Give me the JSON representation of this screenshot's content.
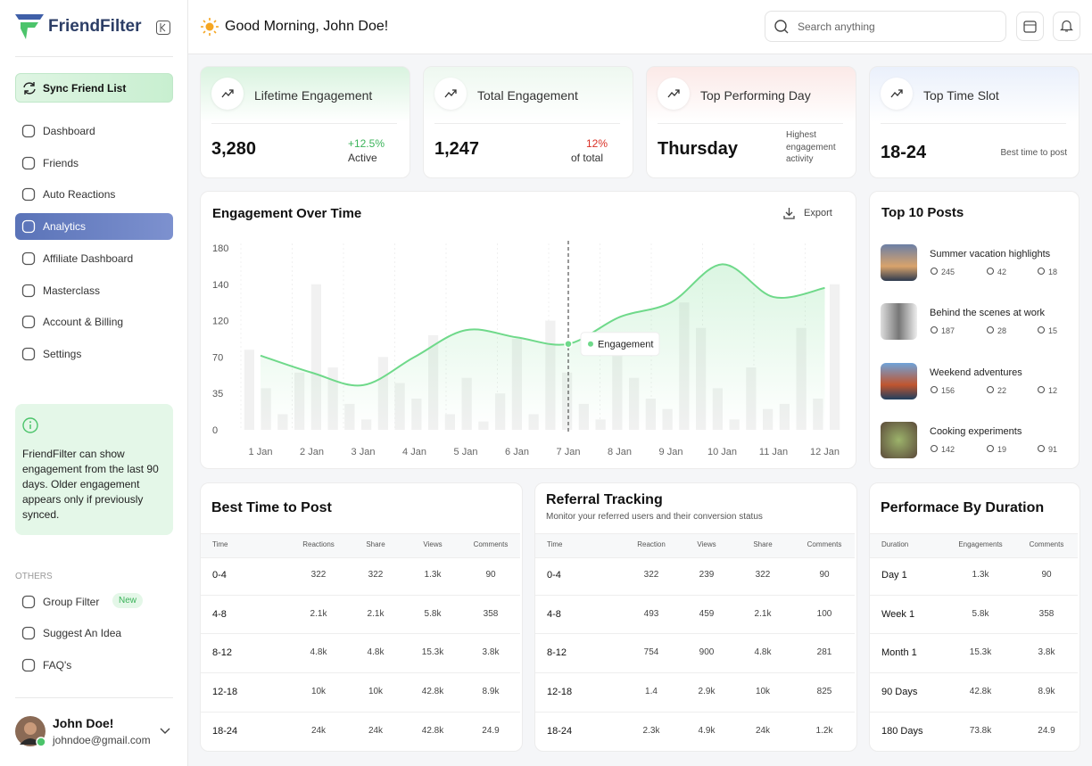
{
  "brand": "FriendFilter",
  "sidebar": {
    "sync": "Sync Friend List",
    "nav": [
      "Dashboard",
      "Friends",
      "Auto Reactions",
      "Analytics",
      "Affiliate Dashboard",
      "Masterclass",
      "Account & Billing",
      "Settings"
    ],
    "info": "FriendFilter can show engagement from the last 90 days. Older engagement appears only if previously synced.",
    "others_heading": "OTHERS",
    "others": [
      "Group Filter",
      "Suggest An Idea",
      "FAQ's"
    ],
    "new_badge": "New",
    "user": {
      "name": "John Doe!",
      "email": "johndoe@gmail.com"
    }
  },
  "header": {
    "greeting": "Good Morning, John Doe!",
    "search_placeholder": "Search anything"
  },
  "stats": [
    {
      "title": "Lifetime Engagement",
      "value": "3,280",
      "change": "+12.5%",
      "note": "Active"
    },
    {
      "title": "Total Engagement",
      "value": "1,247",
      "change": "12%",
      "note": "of total"
    },
    {
      "title": "Top Performing Day",
      "value": "Thursday",
      "note": "Highest engagement activity"
    },
    {
      "title": "Top Time Slot",
      "value": "18-24",
      "note": "Best time to post"
    }
  ],
  "chart_data": {
    "type": "line",
    "title": "Engagement Over Time",
    "export": "Export",
    "categories": [
      "1 Jan",
      "2 Jan",
      "3 Jan",
      "4 Jan",
      "5 Jan",
      "6 Jan",
      "7 Jan",
      "8 Jan",
      "9 Jan",
      "10 Jan",
      "11 Jan",
      "12 Jan"
    ],
    "series": [
      {
        "name": "Engagement",
        "color": "#6fd98a",
        "values": [
          72,
          55,
          43,
          70,
          107,
          97,
          88,
          122,
          130,
          162,
          133,
          138
        ]
      }
    ],
    "bars": [
      80,
      40,
      15,
      55,
      140,
      60,
      25,
      10,
      70,
      45,
      30,
      100,
      15,
      50,
      8,
      35,
      95,
      15,
      120,
      55,
      25,
      10,
      85,
      50,
      30,
      20,
      130,
      110,
      40,
      10,
      60,
      20,
      25,
      110,
      30,
      140
    ],
    "ylim": [
      0,
      180
    ],
    "yticks": [
      0,
      35,
      70,
      120,
      140,
      180
    ]
  },
  "top_posts": {
    "title": "Top 10 Posts",
    "posts": [
      {
        "title": "Summer vacation highlights",
        "likes": "245",
        "comments": "42",
        "shares": "18"
      },
      {
        "title": "Behind the scenes at work",
        "likes": "187",
        "comments": "28",
        "shares": "15"
      },
      {
        "title": "Weekend adventures",
        "likes": "156",
        "comments": "22",
        "shares": "12"
      },
      {
        "title": "Cooking experiments",
        "likes": "142",
        "comments": "19",
        "shares": "91"
      }
    ]
  },
  "best_time": {
    "title": "Best Time to Post",
    "columns": [
      "Time",
      "Reactions",
      "Share",
      "Views",
      "Comments"
    ],
    "rows": [
      [
        "0-4",
        "322",
        "322",
        "1.3k",
        "90"
      ],
      [
        "4-8",
        "2.1k",
        "2.1k",
        "5.8k",
        "358"
      ],
      [
        "8-12",
        "4.8k",
        "4.8k",
        "15.3k",
        "3.8k"
      ],
      [
        "12-18",
        "10k",
        "10k",
        "42.8k",
        "8.9k"
      ],
      [
        "18-24",
        "24k",
        "24k",
        "42.8k",
        "24.9"
      ]
    ]
  },
  "referral": {
    "title": "Referral Tracking",
    "subtitle": "Monitor your referred users and their conversion status",
    "columns": [
      "Time",
      "Reaction",
      "Views",
      "Share",
      "Comments"
    ],
    "rows": [
      [
        "0-4",
        "322",
        "239",
        "322",
        "90"
      ],
      [
        "4-8",
        "493",
        "459",
        "2.1k",
        "100"
      ],
      [
        "8-12",
        "754",
        "900",
        "4.8k",
        "281"
      ],
      [
        "12-18",
        "1.4",
        "2.9k",
        "10k",
        "825"
      ],
      [
        "18-24",
        "2.3k",
        "4.9k",
        "24k",
        "1.2k"
      ]
    ]
  },
  "duration": {
    "title": "Performace By Duration",
    "columns": [
      "Duration",
      "Engagements",
      "Comments"
    ],
    "rows": [
      [
        "Day 1",
        "1.3k",
        "90"
      ],
      [
        "Week 1",
        "5.8k",
        "358"
      ],
      [
        "Month 1",
        "15.3k",
        "3.8k"
      ],
      [
        "90 Days",
        "42.8k",
        "8.9k"
      ],
      [
        "180 Days",
        "73.8k",
        "24.9"
      ]
    ]
  }
}
